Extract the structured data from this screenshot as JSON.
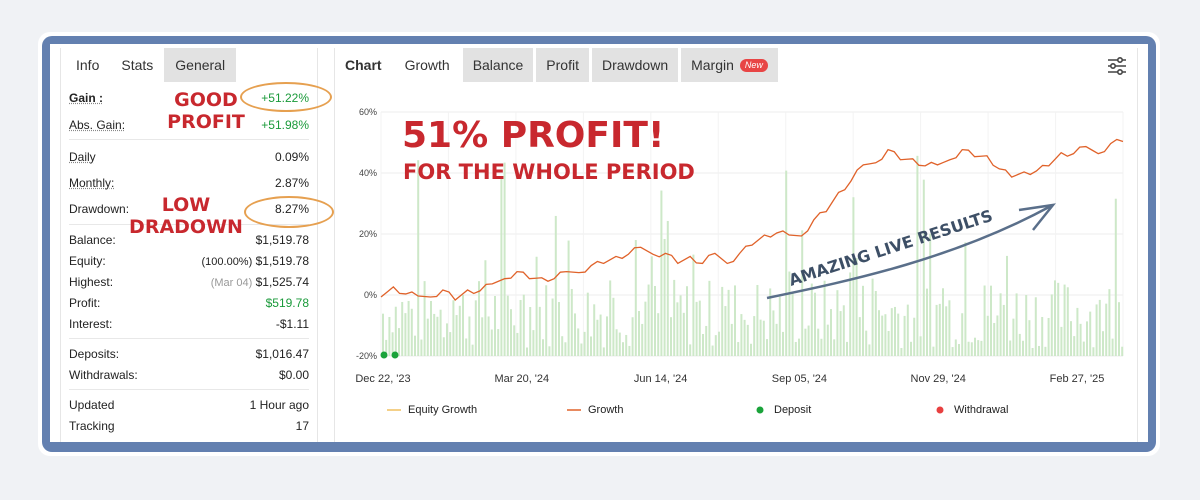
{
  "left_tabs": [
    {
      "label": "Info",
      "active": false
    },
    {
      "label": "Stats",
      "active": true
    },
    {
      "label": "General",
      "active": false
    }
  ],
  "stats": {
    "gain": {
      "label": "Gain :",
      "value": "+51.22%"
    },
    "abs_gain": {
      "label": "Abs. Gain:",
      "value": "+51.98%"
    },
    "daily": {
      "label": "Daily",
      "value": "0.09%"
    },
    "monthly": {
      "label": "Monthly:",
      "value": "2.87%"
    },
    "drawdown": {
      "label": "Drawdown:",
      "value": "8.27%"
    },
    "balance": {
      "label": "Balance:",
      "value": "$1,519.78"
    },
    "equity": {
      "label": "Equity:",
      "note": "(100.00%)",
      "value": "$1,519.78"
    },
    "highest": {
      "label": "Highest:",
      "note": "(Mar 04)",
      "value": "$1,525.74"
    },
    "profit": {
      "label": "Profit:",
      "value": "$519.78"
    },
    "interest": {
      "label": "Interest:",
      "value": "-$1.11"
    },
    "deposits": {
      "label": "Deposits:",
      "value": "$1,016.47"
    },
    "withdrawals": {
      "label": "Withdrawals:",
      "value": "$0.00"
    },
    "updated": {
      "label": "Updated",
      "value": "1 Hour ago"
    },
    "tracking": {
      "label": "Tracking",
      "value": "17"
    }
  },
  "right_tabs": [
    {
      "label": "Chart",
      "style": "bold"
    },
    {
      "label": "Growth",
      "style": "selected"
    },
    {
      "label": "Balance",
      "style": "normal"
    },
    {
      "label": "Profit",
      "style": "normal"
    },
    {
      "label": "Drawdown",
      "style": "normal"
    },
    {
      "label": "Margin",
      "style": "normal",
      "badge": "New"
    }
  ],
  "annotations": {
    "good_profit": "GOOD PROFIT",
    "low_drawdown": "LOW DRADOWN",
    "headline": "51% PROFIT!",
    "subheadline": "FOR THE WHOLE PERIOD",
    "arrow_text": "AMAZING LIVE RESULTS"
  },
  "colors": {
    "growth_line": "#e0622a",
    "equity_bars": "#cde8c8",
    "deposit": "#1aa33a",
    "withdrawal": "#e84040",
    "annotation_red": "#c8282e",
    "frame": "#6380b0"
  },
  "chart_data": {
    "type": "line",
    "yticks": [
      "60%",
      "40%",
      "20%",
      "0%",
      "-20%"
    ],
    "ylim": [
      -20,
      60
    ],
    "xticks": [
      "Dec 22, '23",
      "Mar 20, '24",
      "Jun 14, '24",
      "Sep 05, '24",
      "Nov 29, '24",
      "Feb 27, '25"
    ],
    "series": [
      {
        "name": "Growth",
        "values": [
          0,
          2,
          1,
          -1,
          0,
          1,
          -1,
          1,
          2,
          3,
          6,
          7,
          6,
          5,
          6,
          7,
          8,
          9,
          11,
          12,
          14,
          15,
          14,
          13,
          11,
          12,
          11,
          13,
          11,
          13,
          17,
          19,
          21,
          19,
          20,
          24,
          28,
          33,
          38,
          42,
          44,
          47,
          45,
          44,
          43,
          42,
          45,
          47,
          46,
          45,
          42,
          38,
          41,
          40,
          43,
          46,
          47,
          48,
          47,
          49,
          51
        ]
      }
    ],
    "legend": [
      {
        "label": "Equity Growth",
        "marker": "line"
      },
      {
        "label": "Growth",
        "marker": "line"
      },
      {
        "label": "Deposit",
        "marker": "dot"
      },
      {
        "label": "Withdrawal",
        "marker": "dot"
      }
    ]
  }
}
